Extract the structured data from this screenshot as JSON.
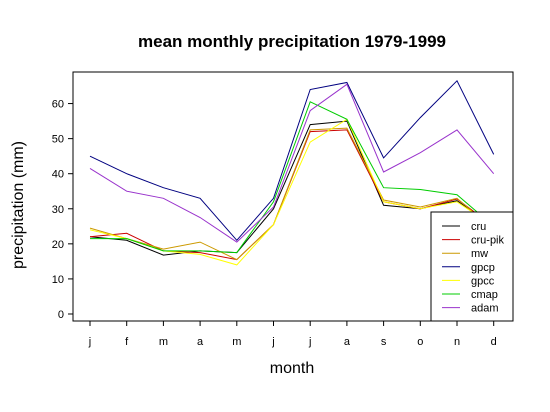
{
  "chart_data": {
    "type": "line",
    "title": "mean monthly precipitation 1979-1999",
    "xlabel": "month",
    "ylabel": "precipitation (mm)",
    "categories": [
      "j",
      "f",
      "m",
      "a",
      "m",
      "j",
      "j",
      "a",
      "s",
      "o",
      "n",
      "d"
    ],
    "yticks": [
      0,
      10,
      20,
      30,
      40,
      50,
      60
    ],
    "ylim": [
      -2,
      69
    ],
    "grid": false,
    "legend_position": "bottom-right",
    "series": [
      {
        "name": "cru",
        "color": "#000000",
        "values": [
          22,
          21,
          16.8,
          18,
          17.5,
          30,
          54,
          55,
          31,
          30,
          32.3,
          25
        ]
      },
      {
        "name": "cru-pik",
        "color": "#cc0000",
        "values": [
          22,
          23,
          18,
          17.5,
          15.5,
          25.5,
          52,
          52.5,
          32,
          30,
          32.8,
          25
        ]
      },
      {
        "name": "mw",
        "color": "#cc9900",
        "values": [
          24.5,
          21.5,
          18.5,
          20.5,
          15.5,
          25.5,
          52.5,
          53,
          32.5,
          30.5,
          33,
          24
        ]
      },
      {
        "name": "gpcp",
        "color": "#000080",
        "values": [
          45,
          40,
          36,
          33,
          21,
          33,
          64,
          66,
          44.5,
          56,
          66.5,
          45.5
        ]
      },
      {
        "name": "gpcc",
        "color": "#ffff00",
        "values": [
          24,
          21.5,
          18,
          17,
          14,
          25.5,
          49,
          55.5,
          32,
          30,
          32,
          25
        ]
      },
      {
        "name": "cmap",
        "color": "#00cc00",
        "values": [
          21.5,
          21.5,
          18,
          18,
          17.5,
          32,
          60.5,
          55.5,
          36,
          35.5,
          34,
          25
        ]
      },
      {
        "name": "adam",
        "color": "#9933cc",
        "values": [
          41.5,
          35,
          33,
          27.5,
          20.5,
          30.5,
          58,
          65.5,
          40.5,
          46,
          52.5,
          40
        ]
      }
    ]
  }
}
